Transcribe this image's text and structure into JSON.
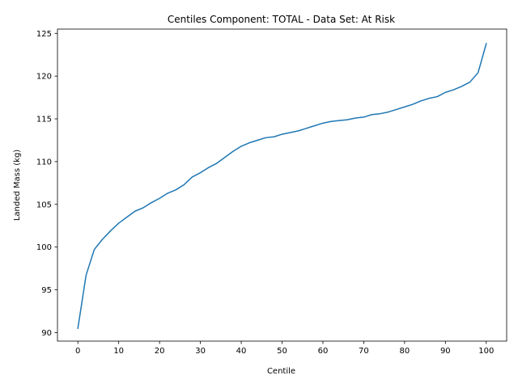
{
  "chart_data": {
    "type": "line",
    "title": "Centiles Component: TOTAL - Data Set: At Risk",
    "xlabel": "Centile",
    "ylabel": "Landed Mass (kg)",
    "xlim": [
      -5,
      105
    ],
    "ylim": [
      89,
      125.5
    ],
    "xticks": [
      0,
      10,
      20,
      30,
      40,
      50,
      60,
      70,
      80,
      90,
      100
    ],
    "yticks": [
      90,
      95,
      100,
      105,
      110,
      115,
      120,
      125
    ],
    "grid": false,
    "line_color": "#1f77b4",
    "series": [
      {
        "x": [
          0,
          2,
          4,
          6,
          8,
          10,
          12,
          14,
          16,
          18,
          20,
          22,
          24,
          26,
          28,
          30,
          32,
          34,
          36,
          38,
          40,
          42,
          44,
          46,
          48,
          50,
          52,
          54,
          56,
          58,
          60,
          62,
          64,
          66,
          68,
          70,
          72,
          74,
          76,
          78,
          80,
          82,
          84,
          86,
          88,
          90,
          92,
          94,
          96,
          98,
          100
        ],
        "y": [
          90.5,
          96.7,
          99.7,
          100.9,
          101.9,
          102.8,
          103.5,
          104.2,
          104.6,
          105.2,
          105.7,
          106.3,
          106.7,
          107.3,
          108.2,
          108.7,
          109.3,
          109.8,
          110.5,
          111.2,
          111.8,
          112.2,
          112.5,
          112.8,
          112.9,
          113.2,
          113.4,
          113.6,
          113.9,
          114.2,
          114.5,
          114.7,
          114.8,
          114.9,
          115.1,
          115.2,
          115.5,
          115.6,
          115.8,
          116.1,
          116.4,
          116.7,
          117.1,
          117.4,
          117.6,
          118.1,
          118.4,
          118.8,
          119.3,
          120.4,
          123.8
        ]
      }
    ]
  }
}
